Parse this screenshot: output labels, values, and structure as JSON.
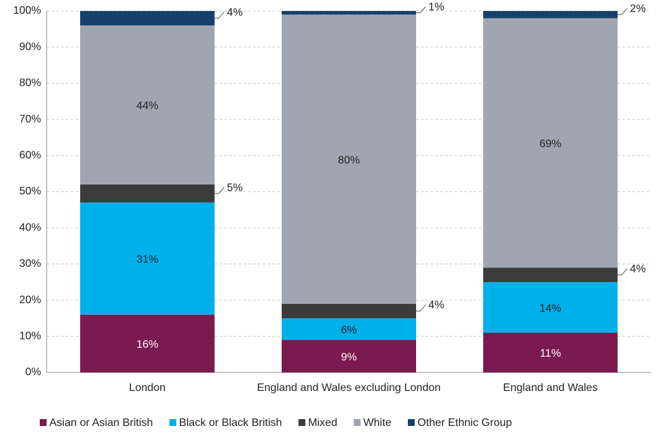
{
  "chart_data": {
    "type": "stacked_bar",
    "categories": [
      "London",
      "England and Wales excluding London",
      "England and Wales"
    ],
    "series": [
      {
        "name": "Asian or Asian British",
        "color": "#7b1a4e",
        "values": [
          16,
          9,
          11
        ],
        "value_labels": [
          "16%",
          "9%",
          "11%"
        ]
      },
      {
        "name": "Black or Black British",
        "color": "#00b0ea",
        "values": [
          31,
          6,
          14
        ],
        "value_labels": [
          "31%",
          "6%",
          "14%"
        ]
      },
      {
        "name": "Mixed",
        "color": "#3b3b3b",
        "values": [
          5,
          4,
          4
        ],
        "value_labels": [
          "5%",
          "4%",
          "4%"
        ]
      },
      {
        "name": "White",
        "color": "#a0a5b2",
        "values": [
          44,
          80,
          69
        ],
        "value_labels": [
          "44%",
          "80%",
          "69%"
        ]
      },
      {
        "name": "Other Ethnic Group",
        "color": "#17406b",
        "values": [
          4,
          1,
          2
        ],
        "value_labels": [
          "4%",
          "1%",
          "2%"
        ]
      }
    ],
    "ylim": [
      0,
      100
    ],
    "yticks": [
      {
        "value": 0,
        "label": "0%"
      },
      {
        "value": 10,
        "label": "10%"
      },
      {
        "value": 20,
        "label": "20%"
      },
      {
        "value": 30,
        "label": "30%"
      },
      {
        "value": 40,
        "label": "40%"
      },
      {
        "value": 50,
        "label": "50%"
      },
      {
        "value": 60,
        "label": "60%"
      },
      {
        "value": 70,
        "label": "70%"
      },
      {
        "value": 80,
        "label": "80%"
      },
      {
        "value": 90,
        "label": "90%"
      },
      {
        "value": 100,
        "label": "100%"
      }
    ],
    "grid": true,
    "legend": "bottom"
  }
}
